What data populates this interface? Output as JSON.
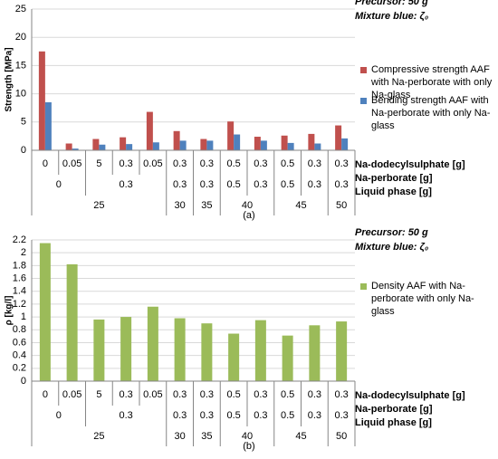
{
  "chart_data": [
    {
      "type": "bar",
      "caption": "(a)",
      "ylabel": "Strength [MPa]",
      "annotations": [
        "Precursor: 50 g",
        "Mixture blue: ζ₀"
      ],
      "category_levels": [
        {
          "name": "Na-dodecylsulphate [g]",
          "labels": [
            "0",
            "0.05",
            "5",
            "0.3",
            "0.05",
            "0.3",
            "0.3",
            "0.5",
            "0.3",
            "0.5",
            "0.3",
            "0.3"
          ]
        },
        {
          "name": "Na-perborate [g]",
          "labels": [
            "0",
            null,
            "0.3",
            null,
            null,
            "0.3",
            "0.3",
            "0.5",
            "0.3",
            "0.5",
            "0.3",
            "0.3"
          ]
        },
        {
          "name": "Liquid phase [g]",
          "labels": [
            "25",
            null,
            null,
            null,
            null,
            "30",
            "35",
            "40",
            null,
            "45",
            null,
            "50"
          ]
        }
      ],
      "series": [
        {
          "name": "Compressive strength AAF with Na-perborate with only Na-glass",
          "color": "#c0504d",
          "values": [
            17.5,
            1.2,
            2.0,
            2.3,
            6.8,
            3.4,
            2.0,
            5.1,
            2.4,
            2.6,
            2.9,
            4.4
          ]
        },
        {
          "name": "Bending strength AAF with Na-perborate with only Na-glass",
          "color": "#4f81bd",
          "values": [
            8.5,
            0.3,
            1.0,
            1.1,
            1.4,
            1.7,
            1.7,
            2.8,
            1.7,
            1.3,
            1.2,
            2.1
          ]
        }
      ],
      "ylim": [
        0,
        25
      ],
      "yticks": [
        0,
        5,
        10,
        15,
        20,
        25
      ],
      "grid": true
    },
    {
      "type": "bar",
      "caption": "(b)",
      "ylabel": "ρ [kg/l]",
      "annotations": [
        "Precursor: 50 g",
        "Mixture blue: ζ₀"
      ],
      "category_levels": [
        {
          "name": "Na-dodecylsulphate [g]",
          "labels": [
            "0",
            "0.05",
            "5",
            "0.3",
            "0.05",
            "0.3",
            "0.3",
            "0.5",
            "0.3",
            "0.5",
            "0.3",
            "0.3"
          ]
        },
        {
          "name": "Na-perborate [g]",
          "labels": [
            "0",
            null,
            "0.3",
            null,
            null,
            "0.3",
            "0.3",
            "0.5",
            "0.3",
            "0.5",
            "0.3",
            "0.3"
          ]
        },
        {
          "name": "Liquid phase [g]",
          "labels": [
            "25",
            null,
            null,
            null,
            null,
            "30",
            "35",
            "40",
            null,
            "45",
            null,
            "50"
          ]
        }
      ],
      "series": [
        {
          "name": "Density AAF with Na-perborate with only Na-glass",
          "color": "#9bbb59",
          "values": [
            2.15,
            1.82,
            0.96,
            1.0,
            1.16,
            0.98,
            0.9,
            0.74,
            0.95,
            0.71,
            0.87,
            0.93
          ]
        }
      ],
      "ylim": [
        0,
        2.2
      ],
      "yticks": [
        0,
        0.2,
        0.4,
        0.6,
        0.8,
        1,
        1.2,
        1.4,
        1.6,
        1.8,
        2,
        2.2
      ],
      "grid": true
    }
  ]
}
